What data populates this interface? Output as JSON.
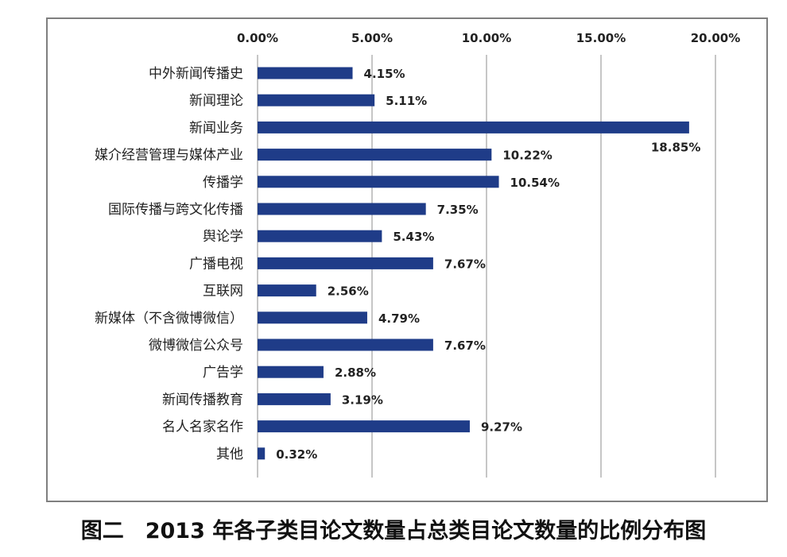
{
  "caption": "图二　2013 年各子类目论文数量占总类目论文数量的比例分布图",
  "chart_data": {
    "type": "bar",
    "orientation": "horizontal",
    "title": "",
    "xlabel": "",
    "ylabel": "",
    "xlim": [
      0,
      20
    ],
    "x_ticks": [
      "0.00%",
      "5.00%",
      "10.00%",
      "15.00%",
      "20.00%"
    ],
    "x_axis_position": "top",
    "grid": true,
    "legend": "none",
    "bar_color": "#1f3c88",
    "categories": [
      "中外新闻传播史",
      "新闻理论",
      "新闻业务",
      "媒介经营管理与媒体产业",
      "传播学",
      "国际传播与跨文化传播",
      "舆论学",
      "广播电视",
      "互联网",
      "新媒体（不含微博微信）",
      "微博微信公众号",
      "广告学",
      "新闻传播教育",
      "名人名家名作",
      "其他"
    ],
    "values": [
      4.15,
      5.11,
      18.85,
      10.22,
      10.54,
      7.35,
      5.43,
      7.67,
      2.56,
      4.79,
      7.67,
      2.88,
      3.19,
      9.27,
      0.32
    ],
    "value_labels": [
      "4.15%",
      "5.11%",
      "18.85%",
      "10.22%",
      "10.54%",
      "7.35%",
      "5.43%",
      "7.67%",
      "2.56%",
      "4.79%",
      "7.67%",
      "2.88%",
      "3.19%",
      "9.27%",
      "0.32%"
    ]
  }
}
